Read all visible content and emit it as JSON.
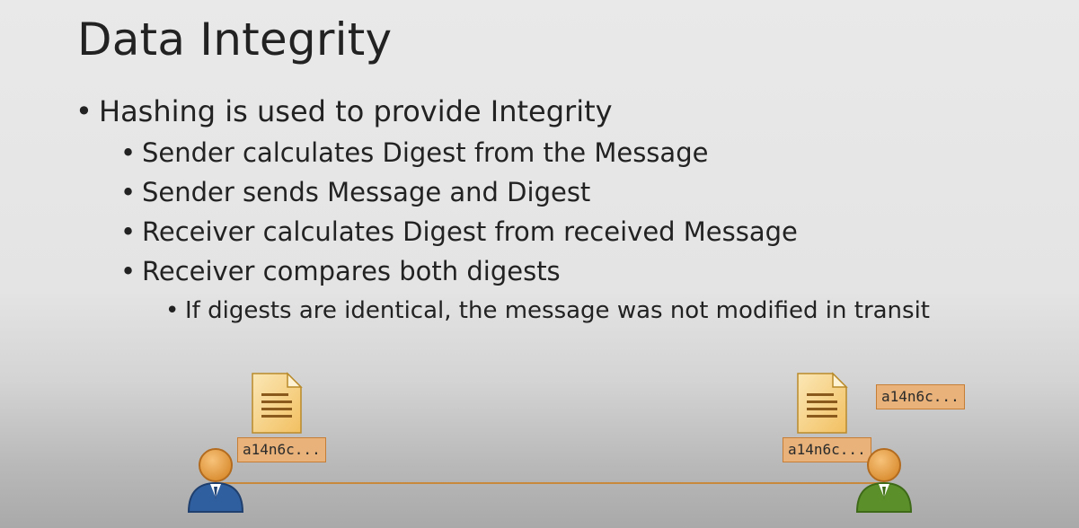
{
  "slide": {
    "title": "Data Integrity",
    "bullet_glyph": "•",
    "bullets": [
      {
        "level": 1,
        "text": "Hashing is used to provide Integrity"
      },
      {
        "level": 2,
        "text": "Sender calculates Digest from the Message"
      },
      {
        "level": 2,
        "text": "Sender sends Message and Digest"
      },
      {
        "level": 2,
        "text": "Receiver calculates Digest from received Message"
      },
      {
        "level": 2,
        "text": "Receiver compares both digests"
      },
      {
        "level": 3,
        "text": "If digests are identical, the message was not modified in transit"
      }
    ]
  },
  "diagram": {
    "sender": {
      "icon": "person-icon",
      "color": "#2f5f9e",
      "document_icon": "document-icon",
      "digest": "a14n6c..."
    },
    "receiver": {
      "icon": "person-icon",
      "color": "#5b8f2a",
      "document_icon": "document-icon",
      "digest": "a14n6c...",
      "calculated_digest": "a14n6c..."
    },
    "link_color": "#c8893c",
    "digest_tag_color": "#e8b27a"
  }
}
